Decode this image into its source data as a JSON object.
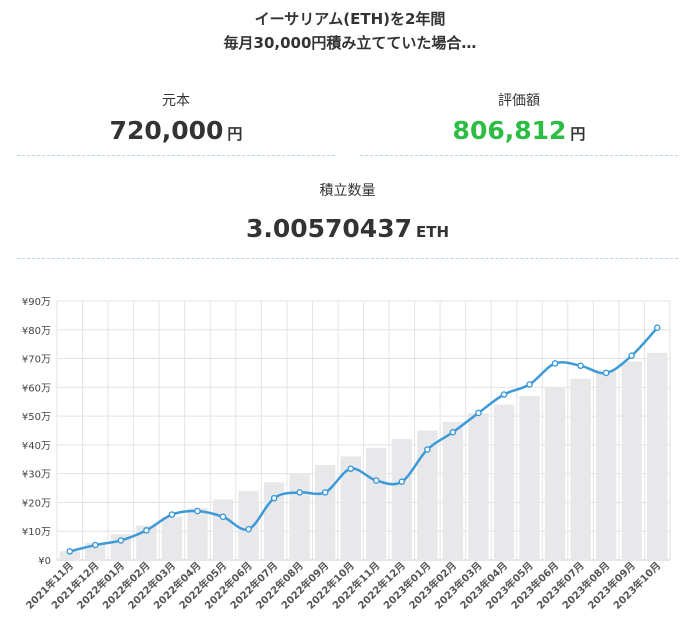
{
  "header": {
    "title": "イーサリアム(ETH)を2年間",
    "subtitle": "毎月30,000円積み立てていた場合…"
  },
  "stats": {
    "principal": {
      "label": "元本",
      "value": "720,000",
      "unit": "円"
    },
    "valuation": {
      "label": "評価額",
      "value": "806,812",
      "unit": "円",
      "color": "#2dbd42"
    },
    "quantity": {
      "label": "積立数量",
      "value": "3.00570437",
      "unit": "ETH"
    }
  },
  "chart_data": {
    "type": "bar+line",
    "categories": [
      "2021年11月",
      "2021年12月",
      "2022年01月",
      "2022年02月",
      "2022年03月",
      "2022年04月",
      "2022年05月",
      "2022年06月",
      "2022年07月",
      "2022年08月",
      "2022年09月",
      "2022年10月",
      "2022年11月",
      "2022年12月",
      "2023年01月",
      "2023年02月",
      "2023年03月",
      "2023年04月",
      "2023年05月",
      "2023年06月",
      "2023年07月",
      "2023年08月",
      "2023年09月",
      "2023年10月"
    ],
    "series": [
      {
        "type": "bar",
        "color": "#e8e8ea",
        "values": [
          30000,
          60000,
          90000,
          120000,
          150000,
          180000,
          210000,
          240000,
          270000,
          300000,
          330000,
          360000,
          390000,
          420000,
          450000,
          480000,
          510000,
          540000,
          570000,
          600000,
          630000,
          660000,
          690000,
          720000
        ]
      },
      {
        "type": "line",
        "color": "#3c9ad8",
        "values": [
          30000,
          52000,
          68000,
          103000,
          158000,
          170000,
          150000,
          107000,
          215000,
          235000,
          235000,
          317000,
          276000,
          272000,
          384000,
          444000,
          511000,
          575000,
          610000,
          683000,
          675000,
          650000,
          710000,
          806812
        ]
      }
    ],
    "yticks": [
      "¥0",
      "¥10万",
      "¥20万",
      "¥30万",
      "¥40万",
      "¥50万",
      "¥60万",
      "¥70万",
      "¥80万",
      "¥90万"
    ],
    "ylim": [
      0,
      900000
    ],
    "grid": true
  }
}
